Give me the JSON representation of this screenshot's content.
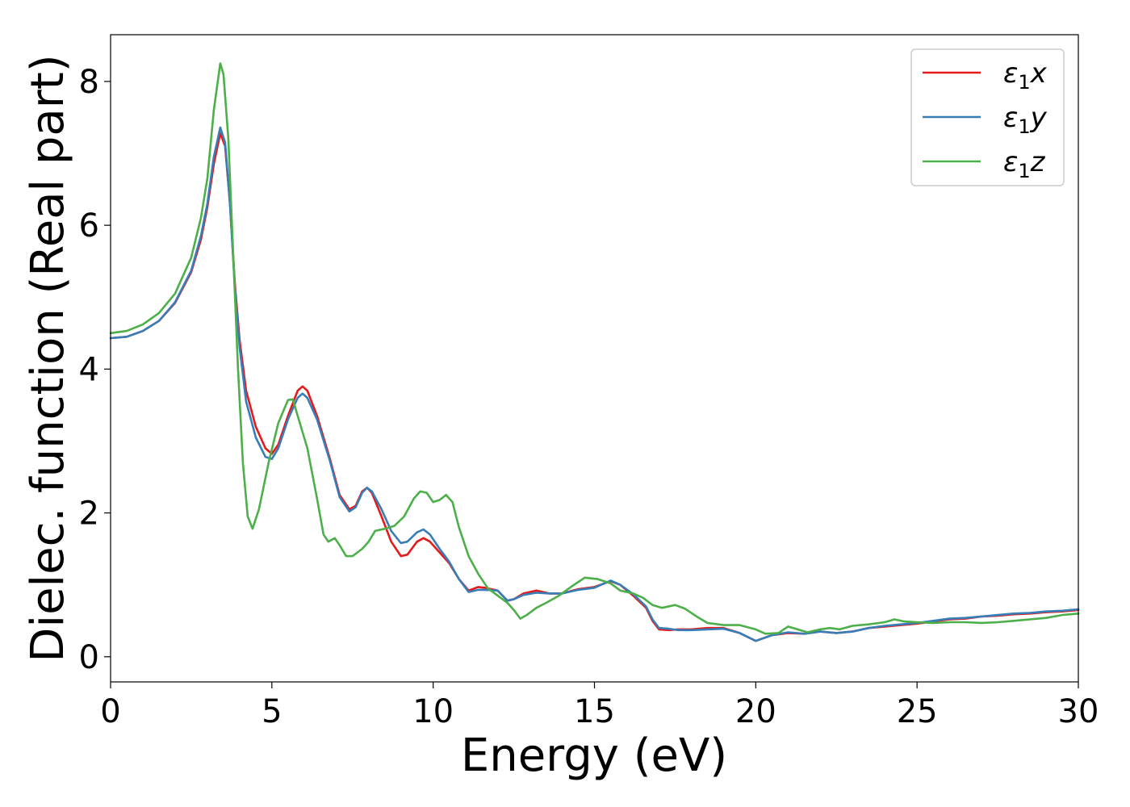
{
  "chart_data": {
    "type": "line",
    "xlabel": "Energy (eV)",
    "ylabel": "Dielec. function (Real part)",
    "xlim": [
      0,
      30
    ],
    "ylim": [
      -0.35,
      8.65
    ],
    "xticks": [
      "0",
      "5",
      "10",
      "15",
      "20",
      "25",
      "30"
    ],
    "yticks": [
      "0",
      "2",
      "4",
      "6",
      "8"
    ],
    "grid": false,
    "legend_position": "top-right",
    "series": [
      {
        "name": "ε1x",
        "label_base": "ε",
        "label_sub": "1",
        "label_suffix": "x",
        "color": "#e41a1c",
        "points": [
          [
            0,
            4.43
          ],
          [
            0.5,
            4.45
          ],
          [
            1,
            4.53
          ],
          [
            1.5,
            4.67
          ],
          [
            2,
            4.92
          ],
          [
            2.5,
            5.35
          ],
          [
            2.8,
            5.8
          ],
          [
            3,
            6.25
          ],
          [
            3.2,
            6.85
          ],
          [
            3.4,
            7.28
          ],
          [
            3.55,
            7.1
          ],
          [
            3.7,
            6.3
          ],
          [
            3.85,
            5.2
          ],
          [
            4,
            4.4
          ],
          [
            4.2,
            3.7
          ],
          [
            4.5,
            3.2
          ],
          [
            4.8,
            2.9
          ],
          [
            5,
            2.82
          ],
          [
            5.2,
            2.95
          ],
          [
            5.5,
            3.35
          ],
          [
            5.8,
            3.7
          ],
          [
            5.95,
            3.76
          ],
          [
            6.1,
            3.7
          ],
          [
            6.4,
            3.35
          ],
          [
            6.8,
            2.75
          ],
          [
            7.1,
            2.25
          ],
          [
            7.4,
            2.05
          ],
          [
            7.6,
            2.1
          ],
          [
            7.8,
            2.3
          ],
          [
            7.95,
            2.35
          ],
          [
            8.1,
            2.28
          ],
          [
            8.4,
            1.95
          ],
          [
            8.7,
            1.6
          ],
          [
            9,
            1.4
          ],
          [
            9.2,
            1.42
          ],
          [
            9.5,
            1.6
          ],
          [
            9.7,
            1.65
          ],
          [
            9.9,
            1.6
          ],
          [
            10.2,
            1.45
          ],
          [
            10.5,
            1.3
          ],
          [
            10.8,
            1.08
          ],
          [
            11.1,
            0.92
          ],
          [
            11.4,
            0.97
          ],
          [
            11.6,
            0.96
          ],
          [
            12,
            0.92
          ],
          [
            12.3,
            0.78
          ],
          [
            12.5,
            0.8
          ],
          [
            12.8,
            0.88
          ],
          [
            13.2,
            0.92
          ],
          [
            13.6,
            0.88
          ],
          [
            14,
            0.88
          ],
          [
            14.5,
            0.94
          ],
          [
            15,
            0.97
          ],
          [
            15.5,
            1.05
          ],
          [
            15.8,
            1.0
          ],
          [
            16.2,
            0.85
          ],
          [
            16.6,
            0.68
          ],
          [
            16.8,
            0.5
          ],
          [
            17,
            0.38
          ],
          [
            17.3,
            0.37
          ],
          [
            17.6,
            0.38
          ],
          [
            18,
            0.38
          ],
          [
            18.5,
            0.4
          ],
          [
            19,
            0.4
          ],
          [
            19.5,
            0.33
          ],
          [
            20,
            0.22
          ],
          [
            20.5,
            0.3
          ],
          [
            21,
            0.33
          ],
          [
            21.5,
            0.32
          ],
          [
            22,
            0.35
          ],
          [
            22.5,
            0.33
          ],
          [
            23,
            0.35
          ],
          [
            23.5,
            0.4
          ],
          [
            24,
            0.42
          ],
          [
            24.5,
            0.44
          ],
          [
            25,
            0.46
          ],
          [
            25.5,
            0.49
          ],
          [
            26,
            0.52
          ],
          [
            26.5,
            0.53
          ],
          [
            27,
            0.56
          ],
          [
            27.5,
            0.57
          ],
          [
            28,
            0.59
          ],
          [
            28.5,
            0.6
          ],
          [
            29,
            0.62
          ],
          [
            29.5,
            0.63
          ],
          [
            30,
            0.65
          ]
        ]
      },
      {
        "name": "ε1y",
        "label_base": "ε",
        "label_sub": "1",
        "label_suffix": "y",
        "color": "#377eb8",
        "points": [
          [
            0,
            4.43
          ],
          [
            0.5,
            4.45
          ],
          [
            1,
            4.53
          ],
          [
            1.5,
            4.67
          ],
          [
            2,
            4.93
          ],
          [
            2.5,
            5.37
          ],
          [
            2.8,
            5.85
          ],
          [
            3,
            6.3
          ],
          [
            3.2,
            6.95
          ],
          [
            3.4,
            7.36
          ],
          [
            3.55,
            7.15
          ],
          [
            3.7,
            6.3
          ],
          [
            3.85,
            5.15
          ],
          [
            4,
            4.3
          ],
          [
            4.2,
            3.55
          ],
          [
            4.5,
            3.05
          ],
          [
            4.8,
            2.78
          ],
          [
            5,
            2.75
          ],
          [
            5.2,
            2.9
          ],
          [
            5.5,
            3.3
          ],
          [
            5.8,
            3.6
          ],
          [
            5.95,
            3.66
          ],
          [
            6.1,
            3.6
          ],
          [
            6.4,
            3.3
          ],
          [
            6.8,
            2.72
          ],
          [
            7.1,
            2.22
          ],
          [
            7.4,
            2.02
          ],
          [
            7.6,
            2.08
          ],
          [
            7.8,
            2.28
          ],
          [
            7.95,
            2.35
          ],
          [
            8.1,
            2.3
          ],
          [
            8.4,
            2.05
          ],
          [
            8.7,
            1.75
          ],
          [
            9,
            1.58
          ],
          [
            9.2,
            1.6
          ],
          [
            9.5,
            1.73
          ],
          [
            9.7,
            1.77
          ],
          [
            9.9,
            1.7
          ],
          [
            10.2,
            1.5
          ],
          [
            10.5,
            1.32
          ],
          [
            10.8,
            1.08
          ],
          [
            11.1,
            0.9
          ],
          [
            11.4,
            0.93
          ],
          [
            11.6,
            0.93
          ],
          [
            12,
            0.92
          ],
          [
            12.3,
            0.78
          ],
          [
            12.5,
            0.8
          ],
          [
            12.8,
            0.86
          ],
          [
            13.2,
            0.89
          ],
          [
            13.6,
            0.88
          ],
          [
            14,
            0.88
          ],
          [
            14.5,
            0.93
          ],
          [
            15,
            0.96
          ],
          [
            15.5,
            1.06
          ],
          [
            15.8,
            1.0
          ],
          [
            16.2,
            0.87
          ],
          [
            16.6,
            0.7
          ],
          [
            16.8,
            0.52
          ],
          [
            17,
            0.4
          ],
          [
            17.3,
            0.39
          ],
          [
            17.6,
            0.37
          ],
          [
            18,
            0.37
          ],
          [
            18.5,
            0.38
          ],
          [
            19,
            0.39
          ],
          [
            19.5,
            0.33
          ],
          [
            20,
            0.22
          ],
          [
            20.5,
            0.3
          ],
          [
            21,
            0.34
          ],
          [
            21.5,
            0.32
          ],
          [
            22,
            0.35
          ],
          [
            22.5,
            0.33
          ],
          [
            23,
            0.35
          ],
          [
            23.5,
            0.4
          ],
          [
            24,
            0.43
          ],
          [
            24.5,
            0.45
          ],
          [
            25,
            0.47
          ],
          [
            25.5,
            0.5
          ],
          [
            26,
            0.53
          ],
          [
            26.5,
            0.54
          ],
          [
            27,
            0.56
          ],
          [
            27.5,
            0.58
          ],
          [
            28,
            0.6
          ],
          [
            28.5,
            0.61
          ],
          [
            29,
            0.63
          ],
          [
            29.5,
            0.64
          ],
          [
            30,
            0.66
          ]
        ]
      },
      {
        "name": "ε1z",
        "label_base": "ε",
        "label_sub": "1",
        "label_suffix": "z",
        "color": "#4daf4a",
        "points": [
          [
            0,
            4.5
          ],
          [
            0.5,
            4.53
          ],
          [
            1,
            4.62
          ],
          [
            1.5,
            4.78
          ],
          [
            2,
            5.05
          ],
          [
            2.5,
            5.55
          ],
          [
            2.8,
            6.1
          ],
          [
            3,
            6.65
          ],
          [
            3.2,
            7.6
          ],
          [
            3.4,
            8.25
          ],
          [
            3.5,
            8.1
          ],
          [
            3.65,
            7.2
          ],
          [
            3.8,
            5.6
          ],
          [
            3.95,
            4.0
          ],
          [
            4.1,
            2.7
          ],
          [
            4.25,
            1.95
          ],
          [
            4.4,
            1.78
          ],
          [
            4.6,
            2.05
          ],
          [
            4.9,
            2.7
          ],
          [
            5.2,
            3.25
          ],
          [
            5.5,
            3.57
          ],
          [
            5.65,
            3.58
          ],
          [
            5.8,
            3.35
          ],
          [
            6.1,
            2.9
          ],
          [
            6.4,
            2.2
          ],
          [
            6.6,
            1.7
          ],
          [
            6.75,
            1.6
          ],
          [
            6.95,
            1.65
          ],
          [
            7.1,
            1.55
          ],
          [
            7.3,
            1.4
          ],
          [
            7.5,
            1.4
          ],
          [
            7.8,
            1.5
          ],
          [
            8,
            1.6
          ],
          [
            8.2,
            1.75
          ],
          [
            8.5,
            1.78
          ],
          [
            8.8,
            1.82
          ],
          [
            9.1,
            1.95
          ],
          [
            9.4,
            2.2
          ],
          [
            9.6,
            2.3
          ],
          [
            9.8,
            2.28
          ],
          [
            10,
            2.15
          ],
          [
            10.2,
            2.18
          ],
          [
            10.4,
            2.25
          ],
          [
            10.6,
            2.15
          ],
          [
            10.8,
            1.8
          ],
          [
            11.1,
            1.4
          ],
          [
            11.4,
            1.15
          ],
          [
            11.7,
            0.95
          ],
          [
            12,
            0.85
          ],
          [
            12.3,
            0.75
          ],
          [
            12.5,
            0.65
          ],
          [
            12.7,
            0.53
          ],
          [
            12.9,
            0.58
          ],
          [
            13.2,
            0.68
          ],
          [
            13.5,
            0.75
          ],
          [
            13.9,
            0.85
          ],
          [
            14.3,
            0.98
          ],
          [
            14.7,
            1.1
          ],
          [
            15.1,
            1.08
          ],
          [
            15.5,
            1.02
          ],
          [
            15.8,
            0.92
          ],
          [
            16.2,
            0.88
          ],
          [
            16.5,
            0.82
          ],
          [
            16.8,
            0.72
          ],
          [
            17.1,
            0.68
          ],
          [
            17.5,
            0.72
          ],
          [
            17.8,
            0.67
          ],
          [
            18.2,
            0.55
          ],
          [
            18.5,
            0.47
          ],
          [
            19,
            0.44
          ],
          [
            19.5,
            0.44
          ],
          [
            20,
            0.38
          ],
          [
            20.3,
            0.32
          ],
          [
            20.7,
            0.33
          ],
          [
            21,
            0.42
          ],
          [
            21.3,
            0.38
          ],
          [
            21.6,
            0.34
          ],
          [
            22,
            0.38
          ],
          [
            22.3,
            0.4
          ],
          [
            22.6,
            0.38
          ],
          [
            23,
            0.43
          ],
          [
            23.5,
            0.45
          ],
          [
            24,
            0.48
          ],
          [
            24.3,
            0.52
          ],
          [
            24.6,
            0.49
          ],
          [
            25,
            0.48
          ],
          [
            25.5,
            0.47
          ],
          [
            26,
            0.48
          ],
          [
            26.5,
            0.48
          ],
          [
            27,
            0.47
          ],
          [
            27.5,
            0.48
          ],
          [
            28,
            0.5
          ],
          [
            28.5,
            0.52
          ],
          [
            29,
            0.54
          ],
          [
            29.5,
            0.58
          ],
          [
            30,
            0.6
          ]
        ]
      }
    ]
  }
}
